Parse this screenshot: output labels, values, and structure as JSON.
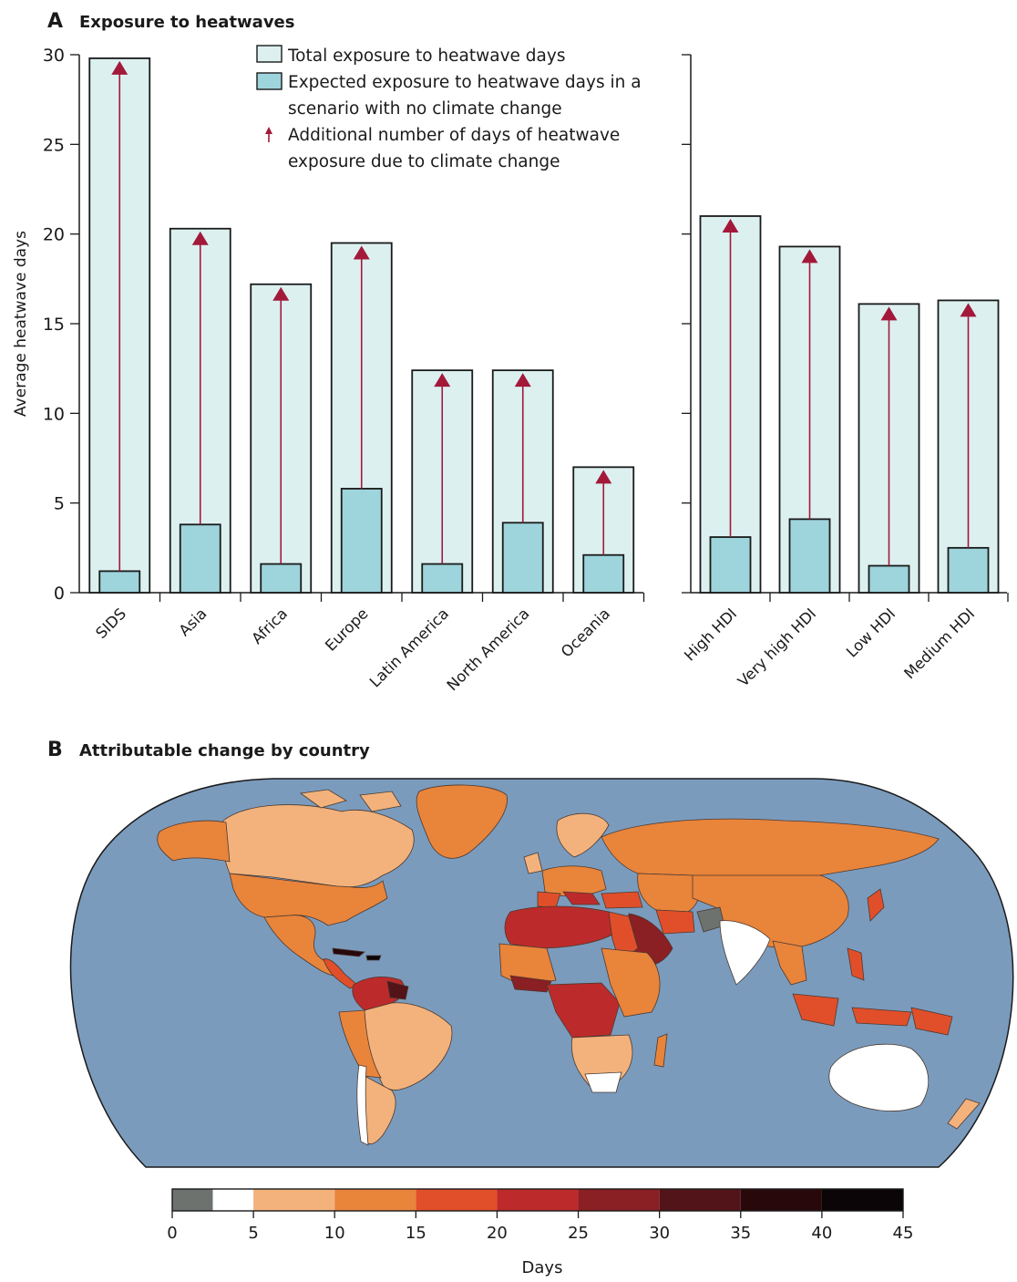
{
  "panelA": {
    "letter": "A",
    "title": "Exposure to heatwaves",
    "legend": {
      "total": "Total exposure to heatwave days",
      "expected_line1": "Expected exposure to heatwave days in a",
      "expected_line2": "scenario with no climate change",
      "additional_line1": "Additional number of days of heatwave",
      "additional_line2": "exposure due to climate change"
    }
  },
  "panelB": {
    "letter": "B",
    "title": "Attributable change by country"
  },
  "chart_data": [
    {
      "type": "bar",
      "title": "Exposure to heatwaves",
      "xlabel": "",
      "ylabel": "Average heatwave days",
      "ylim": [
        0,
        30
      ],
      "yticks": [
        0,
        5,
        10,
        15,
        20,
        25,
        30
      ],
      "grid": false,
      "groups": [
        {
          "name": "regions",
          "categories": [
            "SIDS",
            "Asia",
            "Africa",
            "Europe",
            "Latin America",
            "North America",
            "Oceania"
          ],
          "series": [
            {
              "name": "Total exposure to heatwave days",
              "values": [
                29.8,
                20.3,
                17.2,
                19.5,
                12.4,
                12.4,
                7.0
              ]
            },
            {
              "name": "Expected exposure to heatwave days in a scenario with no climate change",
              "values": [
                1.2,
                3.8,
                1.6,
                5.8,
                1.6,
                3.9,
                2.1
              ]
            }
          ]
        },
        {
          "name": "HDI",
          "categories": [
            "High HDI",
            "Very high HDI",
            "Low HDI",
            "Medium HDI"
          ],
          "series": [
            {
              "name": "Total exposure to heatwave days",
              "values": [
                21.0,
                19.3,
                16.1,
                16.3
              ]
            },
            {
              "name": "Expected exposure to heatwave days in a scenario with no climate change",
              "values": [
                3.1,
                4.1,
                1.5,
                2.5
              ]
            }
          ]
        }
      ],
      "annotation": "Arrows show additional number of days of heatwave exposure due to climate change (total minus expected)"
    },
    {
      "type": "choropleth",
      "title": "Attributable change by country",
      "legend_title": "Days",
      "colorbar_ticks": [
        0,
        5,
        10,
        15,
        20,
        25,
        30,
        35,
        40,
        45
      ],
      "colorbar_bins": [
        {
          "from": 0,
          "to": 2.5,
          "color": "#6e726e"
        },
        {
          "from": 2.5,
          "to": 5,
          "color": "#ffffff"
        },
        {
          "from": 5,
          "to": 10,
          "color": "#f3b27c"
        },
        {
          "from": 10,
          "to": 15,
          "color": "#e9843b"
        },
        {
          "from": 15,
          "to": 20,
          "color": "#e14f2a"
        },
        {
          "from": 20,
          "to": 25,
          "color": "#bd2a2b"
        },
        {
          "from": 25,
          "to": 30,
          "color": "#8a1f24"
        },
        {
          "from": 30,
          "to": 35,
          "color": "#521418"
        },
        {
          "from": 35,
          "to": 40,
          "color": "#28080b"
        },
        {
          "from": 40,
          "to": 45,
          "color": "#0b0508"
        }
      ]
    }
  ],
  "colors": {
    "total_fill": "#dcf0f0",
    "expected_fill": "#9ed4db",
    "arrow": "#a3193a",
    "ocean": "#7b9bbd",
    "bar_stroke": "#1a1a1a"
  }
}
